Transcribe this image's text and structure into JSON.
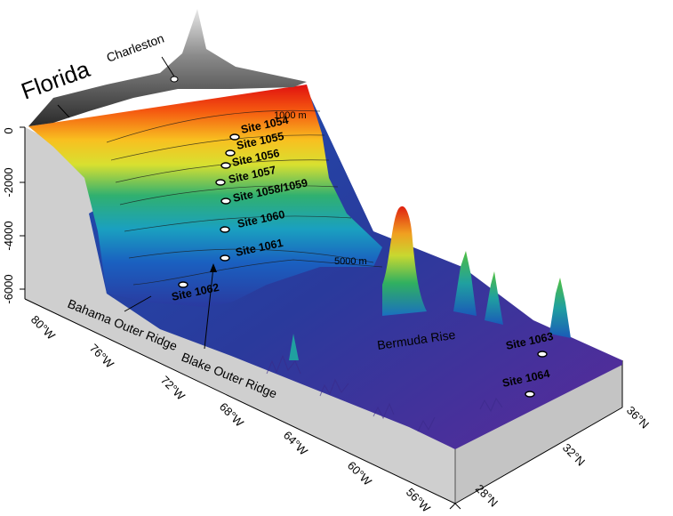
{
  "labels": {
    "florida": "Florida",
    "charleston": "Charleston",
    "bahama": "Bahama Outer Ridge",
    "blake": "Blake Outer Ridge",
    "bermuda": "Bermuda Rise",
    "contour_1000": "1000 m",
    "contour_5000": "5000 m"
  },
  "sites": [
    "Site 1054",
    "Site 1055",
    "Site 1056",
    "Site 1057",
    "Site 1058/1059",
    "Site 1060",
    "Site 1061",
    "Site 1062",
    "Site 1063",
    "Site 1064"
  ],
  "depth_ticks": [
    "0",
    "-2000",
    "-4000",
    "-6000"
  ],
  "lon_ticks": [
    "80°W",
    "76°W",
    "72°W",
    "68°W",
    "64°W",
    "60°W",
    "56°W"
  ],
  "lat_ticks": [
    "28°N",
    "32°N",
    "36°N"
  ],
  "colors": {
    "land": "#3a3a3a",
    "shallow": "#e01010",
    "mid": "#f0e020",
    "deep": "#2060c0",
    "abyss": "#5a2a9a",
    "side": "#c8c8c8"
  }
}
